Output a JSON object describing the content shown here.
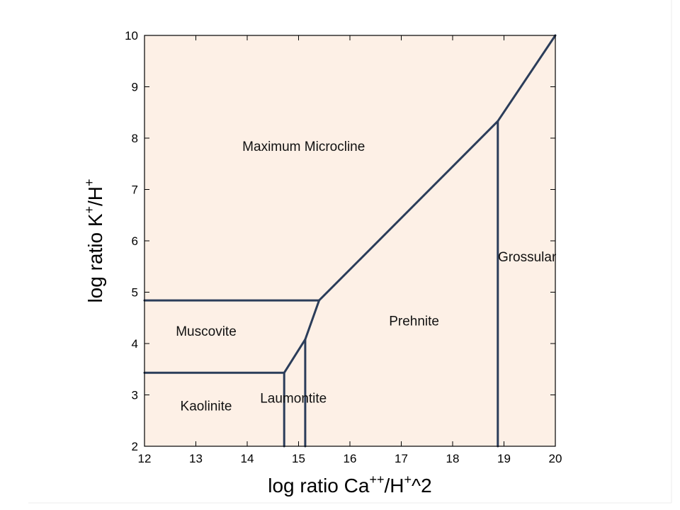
{
  "chart_data": {
    "type": "line",
    "title": "",
    "xlabel": {
      "base": "log ratio Ca",
      "sup1": "++",
      "mid": "/H",
      "sup2": "+",
      "tail": "^2"
    },
    "ylabel": {
      "base": "log ratio K",
      "sup1": "+",
      "mid": "/H",
      "sup2": "+"
    },
    "xlim": [
      12,
      20
    ],
    "ylim": [
      2,
      10
    ],
    "xticks": [
      12,
      13,
      14,
      15,
      16,
      17,
      18,
      19,
      20
    ],
    "yticks": [
      2,
      3,
      4,
      5,
      6,
      7,
      8,
      9,
      10
    ],
    "colors": {
      "background": "#fdf0e6",
      "boundary": "#2b3d5a"
    },
    "boundaries": [
      {
        "name": "kaolinite-muscovite",
        "points": [
          [
            12,
            3.43
          ],
          [
            14.72,
            3.43
          ]
        ]
      },
      {
        "name": "muscovite-microcline",
        "points": [
          [
            12,
            4.84
          ],
          [
            15.4,
            4.84
          ]
        ]
      },
      {
        "name": "kaolinite-laumontite",
        "points": [
          [
            14.72,
            2
          ],
          [
            14.72,
            3.43
          ]
        ]
      },
      {
        "name": "muscovite-laumontite",
        "points": [
          [
            14.72,
            3.43
          ],
          [
            15.13,
            4.08
          ]
        ]
      },
      {
        "name": "laumontite-prehnite",
        "points": [
          [
            15.13,
            2
          ],
          [
            15.13,
            4.08
          ]
        ]
      },
      {
        "name": "muscovite-prehnite",
        "points": [
          [
            15.13,
            4.08
          ],
          [
            15.4,
            4.84
          ]
        ]
      },
      {
        "name": "microcline-prehnite",
        "points": [
          [
            15.4,
            4.84
          ],
          [
            18.88,
            8.33
          ]
        ]
      },
      {
        "name": "prehnite-grossular",
        "points": [
          [
            18.88,
            2
          ],
          [
            18.88,
            8.33
          ]
        ]
      },
      {
        "name": "microcline-grossular",
        "points": [
          [
            18.88,
            8.33
          ],
          [
            20,
            10
          ]
        ]
      }
    ],
    "regions": [
      {
        "label": "Maximum Microcline",
        "x": 15.1,
        "y": 7.75
      },
      {
        "label": "Muscovite",
        "x": 13.2,
        "y": 4.15
      },
      {
        "label": "Prehnite",
        "x": 17.25,
        "y": 4.35
      },
      {
        "label": "Kaolinite",
        "x": 13.2,
        "y": 2.7
      },
      {
        "label": "Laumontite",
        "x": 14.9,
        "y": 2.85
      },
      {
        "label": "Grossular",
        "x": 19.45,
        "y": 5.6
      }
    ]
  }
}
